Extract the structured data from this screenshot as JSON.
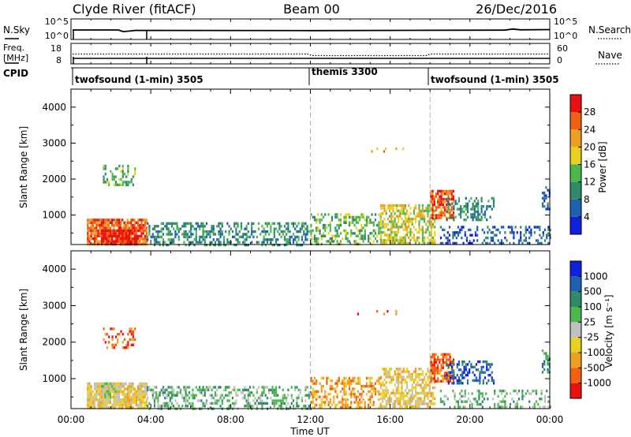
{
  "header": {
    "station": "Clyde River (fitACF)",
    "beam": "Beam 00",
    "date": "26/Dec/2016"
  },
  "noise_panel": {
    "left_label": "N.Sky",
    "right_label": "N.Search",
    "left_ticks": [
      "10^5",
      "10^0"
    ],
    "right_ticks": [
      "10^5",
      "10^0"
    ]
  },
  "freq_panel": {
    "left_label_1": "Freq.",
    "left_label_2": "[MHz]",
    "right_label": "Nave",
    "left_ticks": [
      "18",
      "8"
    ],
    "right_ticks": [
      "60",
      "0"
    ]
  },
  "cpid": {
    "label": "CPID",
    "segments": [
      {
        "text": "twofsound (1-min) 3505",
        "start_hour": 0
      },
      {
        "text": "themis 3300",
        "start_hour": 12
      },
      {
        "text": "twofsound (1-min) 3505",
        "start_hour": 18
      }
    ]
  },
  "time_axis": {
    "xlabel": "Time UT",
    "ticks": [
      "00:00",
      "04:00",
      "08:00",
      "12:00",
      "16:00",
      "20:00",
      "00:00"
    ],
    "tick_hours": [
      0,
      4,
      8,
      12,
      16,
      20,
      24
    ],
    "range_hours": [
      0,
      24
    ],
    "dashed_marks_hours": [
      12,
      18
    ]
  },
  "power_panel": {
    "ylabel": "Slant Range [km]",
    "yticks": [
      "1000",
      "2000",
      "3000",
      "4000"
    ],
    "colorbar_label": "Power [dB]",
    "colorbar_ticks": [
      "4",
      "8",
      "12",
      "16",
      "20",
      "24",
      "28"
    ]
  },
  "velocity_panel": {
    "ylabel": "Slant Range [km]",
    "yticks": [
      "1000",
      "2000",
      "3000",
      "4000"
    ],
    "colorbar_label": "Velocity [m s⁻¹]",
    "colorbar_ticks": [
      "1000",
      "500",
      "100",
      "25",
      "-25",
      "-100",
      "-500",
      "-1000"
    ]
  },
  "chart_data": [
    {
      "type": "heatmap",
      "name_printed": "Power [dB]",
      "x": "Time UT (hours)",
      "xlim": [
        0,
        24
      ],
      "ylim": [
        180,
        4500
      ],
      "y_units": "km",
      "color_levels": [
        0,
        4,
        8,
        12,
        16,
        20,
        24,
        28,
        32
      ],
      "colors": [
        "#1020e0",
        "#2060b0",
        "#2f8a6a",
        "#4cb84c",
        "#e8d020",
        "#f0a020",
        "#f06010",
        "#e81010"
      ],
      "scatter_regions": [
        {
          "t0": 0.8,
          "t1": 3.8,
          "r0": 200,
          "r1": 900,
          "level": 6,
          "density": 0.9
        },
        {
          "t0": 1.5,
          "t1": 3.3,
          "r0": 200,
          "r1": 600,
          "level": 7,
          "density": 0.9
        },
        {
          "t0": 1.6,
          "t1": 3.2,
          "r0": 1850,
          "r1": 2400,
          "level": 3,
          "density": 0.35
        },
        {
          "t0": 3.8,
          "t1": 12.0,
          "r0": 200,
          "r1": 800,
          "level": 2,
          "density": 0.45
        },
        {
          "t0": 12.0,
          "t1": 15.5,
          "r0": 200,
          "r1": 1050,
          "level": 3,
          "density": 0.45
        },
        {
          "t0": 14.0,
          "t1": 16.8,
          "r0": 2750,
          "r1": 2880,
          "level": 5,
          "density": 0.06
        },
        {
          "t0": 15.5,
          "t1": 18.2,
          "r0": 200,
          "r1": 1300,
          "level": 4,
          "density": 0.6
        },
        {
          "t0": 18.0,
          "t1": 19.2,
          "r0": 900,
          "r1": 1700,
          "level": 6,
          "density": 0.7
        },
        {
          "t0": 18.8,
          "t1": 21.2,
          "r0": 900,
          "r1": 1500,
          "level": 2,
          "density": 0.35
        },
        {
          "t0": 18.5,
          "t1": 24.0,
          "r0": 200,
          "r1": 700,
          "level": 1,
          "density": 0.3
        },
        {
          "t0": 23.6,
          "t1": 24.0,
          "r0": 1200,
          "r1": 1800,
          "level": 1,
          "density": 0.5
        }
      ]
    },
    {
      "type": "heatmap",
      "name_printed": "Velocity [m s⁻¹]",
      "x": "Time UT (hours)",
      "xlim": [
        0,
        24
      ],
      "ylim": [
        180,
        4500
      ],
      "y_units": "km",
      "color_levels": [
        -1000,
        -500,
        -100,
        -25,
        25,
        100,
        500,
        1000
      ],
      "colors": [
        "#e81010",
        "#f06010",
        "#f0a020",
        "#e8d020",
        "#c0c0c0",
        "#4cb84c",
        "#2f8a6a",
        "#2060b0",
        "#1020e0"
      ],
      "scatter_regions": [
        {
          "t0": 0.8,
          "t1": 3.8,
          "r0": 200,
          "r1": 900,
          "level": 3,
          "density": 0.85
        },
        {
          "t0": 1.5,
          "t1": 2.4,
          "r0": 500,
          "r1": 900,
          "level": 4,
          "density": 0.6
        },
        {
          "t0": 1.6,
          "t1": 3.2,
          "r0": 1850,
          "r1": 2400,
          "level": 1,
          "density": 0.35
        },
        {
          "t0": 3.8,
          "t1": 12.0,
          "r0": 200,
          "r1": 800,
          "level": 5,
          "density": 0.45
        },
        {
          "t0": 12.0,
          "t1": 15.5,
          "r0": 200,
          "r1": 1050,
          "level": 2,
          "density": 0.45
        },
        {
          "t0": 14.0,
          "t1": 16.8,
          "r0": 2750,
          "r1": 2880,
          "level": 1,
          "density": 0.06
        },
        {
          "t0": 15.5,
          "t1": 18.2,
          "r0": 200,
          "r1": 1300,
          "level": 3,
          "density": 0.6
        },
        {
          "t0": 18.0,
          "t1": 19.2,
          "r0": 900,
          "r1": 1700,
          "level": 1,
          "density": 0.7
        },
        {
          "t0": 18.8,
          "t1": 21.2,
          "r0": 900,
          "r1": 1500,
          "level": 7,
          "density": 0.45
        },
        {
          "t0": 18.5,
          "t1": 24.0,
          "r0": 200,
          "r1": 700,
          "level": 5,
          "density": 0.3
        },
        {
          "t0": 23.6,
          "t1": 24.0,
          "r0": 1200,
          "r1": 1800,
          "level": 6,
          "density": 0.5
        }
      ]
    }
  ]
}
